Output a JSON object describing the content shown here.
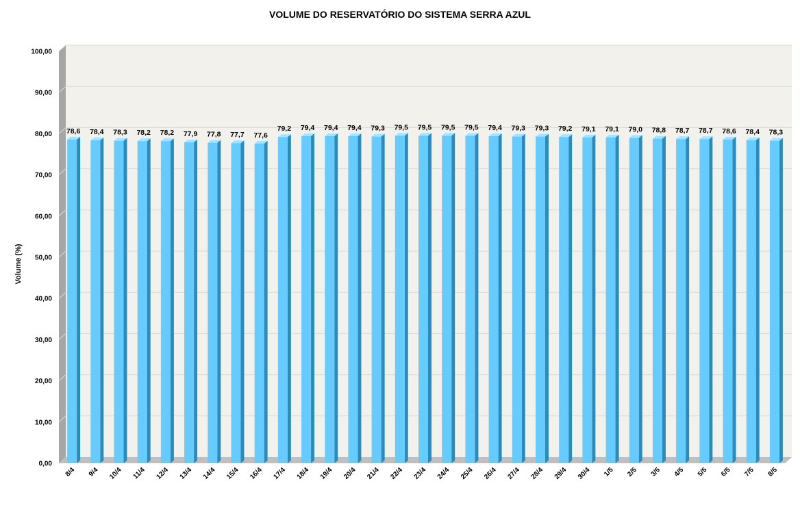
{
  "chart_data": {
    "type": "bar",
    "title": "VOLUME DO RESERVATÓRIO DO SISTEMA SERRA AZUL",
    "xlabel": "",
    "ylabel": "Volume (%)",
    "ylim": [
      0,
      100
    ],
    "yticks": [
      "0,00",
      "10,00",
      "20,00",
      "30,00",
      "40,00",
      "50,00",
      "60,00",
      "70,00",
      "80,00",
      "90,00",
      "100,00"
    ],
    "categories": [
      "8/4",
      "9/4",
      "10/4",
      "11/4",
      "12/4",
      "13/4",
      "14/4",
      "15/4",
      "16/4",
      "17/4",
      "18/4",
      "19/4",
      "20/4",
      "21/4",
      "22/4",
      "23/4",
      "24/4",
      "25/4",
      "26/4",
      "27/4",
      "28/4",
      "29/4",
      "30/4",
      "1/5",
      "2/5",
      "3/5",
      "4/5",
      "5/5",
      "6/5",
      "7/5",
      "8/5"
    ],
    "values": [
      78.6,
      78.4,
      78.3,
      78.2,
      78.2,
      77.9,
      77.8,
      77.7,
      77.6,
      79.2,
      79.4,
      79.4,
      79.4,
      79.3,
      79.5,
      79.5,
      79.5,
      79.5,
      79.4,
      79.3,
      79.3,
      79.2,
      79.1,
      79.1,
      79.0,
      78.8,
      78.7,
      78.7,
      78.6,
      78.4,
      78.3
    ],
    "data_labels": [
      "78,6",
      "78,4",
      "78,3",
      "78,2",
      "78,2",
      "77,9",
      "77,8",
      "77,7",
      "77,6",
      "79,2",
      "79,4",
      "79,4",
      "79,4",
      "79,3",
      "79,5",
      "79,5",
      "79,5",
      "79,5",
      "79,4",
      "79,3",
      "79,3",
      "79,2",
      "79,1",
      "79,1",
      "79,0",
      "78,8",
      "78,7",
      "78,7",
      "78,6",
      "78,4",
      "78,3"
    ],
    "grid": true,
    "style_3d": true,
    "colors": {
      "bar_front": "#66CCFF",
      "bar_side": "#2E8AB8",
      "bar_top": "#A8E2FF",
      "wall": "#F2F1EC",
      "wall_side": "#A6A6A6",
      "floor": "#BFBFBF",
      "gridline": "#D9D9D9"
    }
  }
}
